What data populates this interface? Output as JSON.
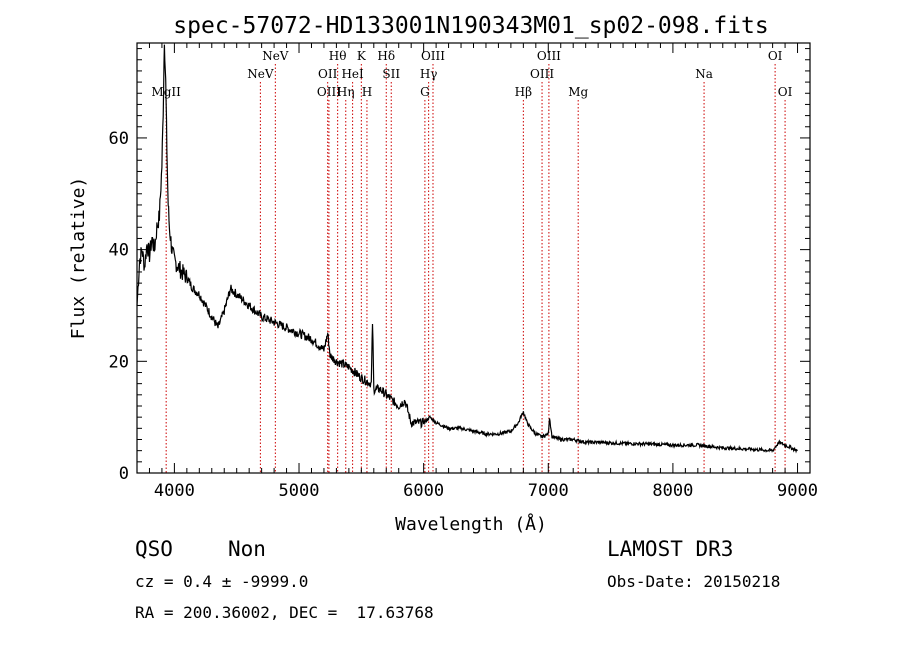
{
  "chart_data": {
    "type": "line",
    "title": "spec-57072-HD133001N190343M01_sp02-098.fits",
    "xlabel": "Wavelength (Å)",
    "ylabel": "Flux (relative)",
    "xlim": [
      3700,
      9100
    ],
    "ylim": [
      0,
      77
    ],
    "x_ticks": [
      4000,
      5000,
      6000,
      7000,
      8000,
      9000
    ],
    "y_ticks": [
      0,
      20,
      40,
      60
    ],
    "grid": false,
    "legend": "none",
    "series": [
      {
        "x": [
          3700,
          3720,
          3740,
          3760,
          3780,
          3800,
          3820,
          3840,
          3860,
          3880,
          3900,
          3910,
          3920,
          3930,
          3940,
          3950,
          3960,
          3980,
          4000,
          4030,
          4060,
          4100,
          4150,
          4200,
          4250,
          4300,
          4350,
          4400,
          4450,
          4500,
          4600,
          4700,
          4800,
          4900,
          5000,
          5100,
          5200,
          5230,
          5250,
          5300,
          5400,
          5500,
          5580,
          5590,
          5600,
          5650,
          5700,
          5800,
          5850,
          5900,
          6000,
          6050,
          6100,
          6200,
          6300,
          6400,
          6500,
          6600,
          6700,
          6760,
          6800,
          6830,
          6860,
          6900,
          6950,
          7000,
          7010,
          7030,
          7100,
          7200,
          7300,
          7400,
          7600,
          7800,
          8000,
          8200,
          8400,
          8600,
          8800,
          8850,
          9000
        ],
        "y": [
          30,
          38,
          40,
          37,
          41,
          39,
          42,
          40,
          44,
          46,
          55,
          65,
          78,
          70,
          58,
          48,
          44,
          40,
          38,
          37,
          36,
          35,
          33,
          32,
          30,
          28,
          26,
          29,
          33,
          32,
          30,
          28,
          27,
          26,
          25,
          24,
          22,
          25,
          21,
          20,
          19,
          17,
          16,
          27,
          15,
          15,
          14,
          12,
          13,
          9,
          9,
          10,
          9,
          8,
          8,
          7.5,
          7,
          7,
          7.5,
          9,
          11,
          9,
          8,
          7,
          6.5,
          7,
          10,
          6.5,
          6,
          6,
          5.5,
          5.5,
          5.3,
          5.2,
          5,
          5,
          4.5,
          4.3,
          4,
          5.5,
          4
        ]
      }
    ]
  },
  "lines": [
    {
      "label": "MgII",
      "wavelength": 3934,
      "row": 3
    },
    {
      "label": "NeV",
      "wavelength": 4690,
      "row": 2
    },
    {
      "label": "NeV",
      "wavelength": 4810,
      "row": 1
    },
    {
      "label": "OII",
      "wavelength": 5230,
      "row": 2
    },
    {
      "label": "OIII",
      "wavelength": 5240,
      "row": 3
    },
    {
      "label": "Hθ",
      "wavelength": 5310,
      "row": 1
    },
    {
      "label": "Hη",
      "wavelength": 5375,
      "row": 3
    },
    {
      "label": "HeI",
      "wavelength": 5430,
      "row": 2
    },
    {
      "label": "K",
      "wavelength": 5500,
      "row": 1
    },
    {
      "label": "H",
      "wavelength": 5545,
      "row": 3
    },
    {
      "label": "Hδ",
      "wavelength": 5700,
      "row": 1
    },
    {
      "label": "SII",
      "wavelength": 5740,
      "row": 2
    },
    {
      "label": "OIII",
      "wavelength": 6075,
      "row": 1
    },
    {
      "label": "Hγ",
      "wavelength": 6040,
      "row": 2
    },
    {
      "label": "G",
      "wavelength": 6010,
      "row": 3
    },
    {
      "label": "Hβ",
      "wavelength": 6800,
      "row": 3
    },
    {
      "label": "OIII",
      "wavelength": 7005,
      "row": 1
    },
    {
      "label": "OIII",
      "wavelength": 6950,
      "row": 2
    },
    {
      "label": "Mg",
      "wavelength": 7240,
      "row": 3
    },
    {
      "label": "Na",
      "wavelength": 8250,
      "row": 2
    },
    {
      "label": "OI",
      "wavelength": 8820,
      "row": 1
    },
    {
      "label": "OI",
      "wavelength": 8900,
      "row": 3
    }
  ],
  "info": {
    "class": "QSO",
    "subclass": "Non",
    "cz": "cz = 0.4 ± -9999.0",
    "radec": "RA = 200.36002, DEC =  17.63768",
    "survey": "LAMOST DR3",
    "obsdate": "Obs-Date: 20150218"
  },
  "colors": {
    "spectrum": "#000000",
    "line_markers": "#cc0000"
  }
}
